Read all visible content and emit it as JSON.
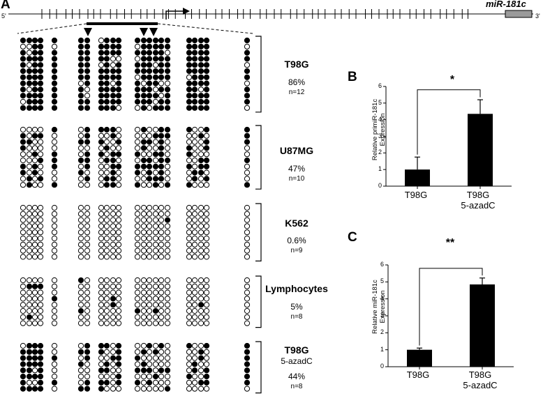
{
  "panel_a": {
    "letter": "A",
    "five_prime": "5'",
    "three_prime": "3'",
    "gene_label": "miR-181c",
    "cell_lines": [
      {
        "name": "T98G",
        "subtitle": "",
        "percent": "86%",
        "n": "n=12"
      },
      {
        "name": "U87MG",
        "subtitle": "",
        "percent": "47%",
        "n": "n=10"
      },
      {
        "name": "K562",
        "subtitle": "",
        "percent": "0.6%",
        "n": "n=9"
      },
      {
        "name": "Lymphocytes",
        "subtitle": "",
        "percent": "5%",
        "n": "n=8"
      },
      {
        "name": "T98G",
        "subtitle": "5-azadC",
        "percent": "44%",
        "n": "n=8"
      }
    ]
  },
  "panel_b": {
    "letter": "B",
    "significance": "*",
    "ylabel_line1": "Relative primiR-181c",
    "ylabel_line2": "Expression",
    "categories": [
      "T98G",
      "T98G"
    ],
    "category_sub": [
      "",
      "5-azadC"
    ]
  },
  "panel_c": {
    "letter": "C",
    "significance": "**",
    "ylabel_line1": "Relative miR-181c",
    "ylabel_line2": "Expression",
    "categories": [
      "T98G",
      "T98G"
    ],
    "category_sub": [
      "",
      "5-azadC"
    ]
  },
  "chart_data": [
    {
      "type": "bar",
      "panel": "B",
      "categories": [
        "T98G",
        "T98G 5-azadC"
      ],
      "values": [
        1.0,
        4.35
      ],
      "errors": [
        0.75,
        0.85
      ],
      "ylabel": "Relative primiR-181c Expression",
      "ylim": [
        0,
        6
      ],
      "yticks": [
        0,
        1,
        2,
        3,
        4,
        5,
        6
      ],
      "grid": false,
      "bar_color": "#000000"
    },
    {
      "type": "bar",
      "panel": "C",
      "categories": [
        "T98G",
        "T98G 5-azadC"
      ],
      "values": [
        1.0,
        4.85
      ],
      "errors": [
        0.1,
        0.38
      ],
      "ylabel": "Relative miR-181c Expression",
      "ylim": [
        0,
        6
      ],
      "yticks": [
        0,
        1,
        2,
        3,
        4,
        5,
        6
      ],
      "grid": false,
      "bar_color": "#000000"
    }
  ]
}
